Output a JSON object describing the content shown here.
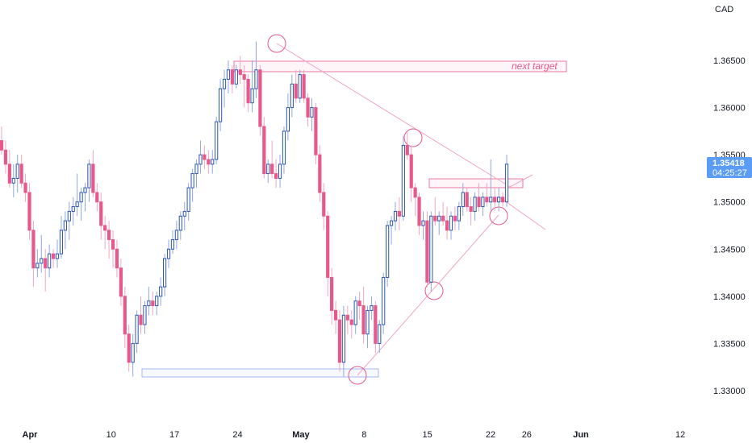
{
  "chart_data": {
    "type": "candlestick",
    "currency": "CAD",
    "y_ticks": [
      "1.36500",
      "1.36000",
      "1.35500",
      "1.35000",
      "1.34500",
      "1.34000",
      "1.33500",
      "1.33000"
    ],
    "ylim": [
      1.3285,
      1.3685
    ],
    "x_ticks": [
      {
        "label": "Apr",
        "day": 0,
        "bold": true
      },
      {
        "label": "10",
        "day": 9,
        "bold": false
      },
      {
        "label": "17",
        "day": 16,
        "bold": false
      },
      {
        "label": "24",
        "day": 23,
        "bold": false
      },
      {
        "label": "May",
        "day": 30,
        "bold": true
      },
      {
        "label": "8",
        "day": 37,
        "bold": false
      },
      {
        "label": "15",
        "day": 44,
        "bold": false
      },
      {
        "label": "22",
        "day": 51,
        "bold": false
      },
      {
        "label": "26",
        "day": 55,
        "bold": false
      },
      {
        "label": "Jun",
        "day": 61,
        "bold": true
      },
      {
        "label": "12",
        "day": 72,
        "bold": false
      }
    ],
    "last_price": "1.35418",
    "countdown": "04:25:27",
    "annotations": [
      {
        "text": "next target"
      }
    ],
    "colors": {
      "up": "#2a56b3",
      "down": "#e8588a",
      "accent": "#e8588a",
      "support": "#8fa7e8",
      "price_tag": "#5b9cf6"
    },
    "candles": [
      [
        1.3565,
        1.358,
        1.355,
        1.3555
      ],
      [
        1.3555,
        1.3565,
        1.353,
        1.354
      ],
      [
        1.354,
        1.3555,
        1.3515,
        1.352
      ],
      [
        1.352,
        1.354,
        1.3505,
        1.3525
      ],
      [
        1.3525,
        1.355,
        1.351,
        1.354
      ],
      [
        1.354,
        1.355,
        1.3515,
        1.352
      ],
      [
        1.352,
        1.353,
        1.35,
        1.351
      ],
      [
        1.351,
        1.352,
        1.346,
        1.347
      ],
      [
        1.347,
        1.348,
        1.341,
        1.343
      ],
      [
        1.343,
        1.345,
        1.342,
        1.3435
      ],
      [
        1.3435,
        1.3465,
        1.3425,
        1.344
      ],
      [
        1.344,
        1.345,
        1.3405,
        1.343
      ],
      [
        1.343,
        1.3455,
        1.342,
        1.3445
      ],
      [
        1.3445,
        1.345,
        1.343,
        1.344
      ],
      [
        1.344,
        1.346,
        1.343,
        1.3445
      ],
      [
        1.3445,
        1.3485,
        1.344,
        1.347
      ],
      [
        1.347,
        1.349,
        1.345,
        1.348
      ],
      [
        1.348,
        1.35,
        1.346,
        1.349
      ],
      [
        1.349,
        1.3505,
        1.3475,
        1.3495
      ],
      [
        1.3495,
        1.353,
        1.3485,
        1.35
      ],
      [
        1.35,
        1.3515,
        1.348,
        1.351
      ],
      [
        1.351,
        1.352,
        1.349,
        1.3515
      ],
      [
        1.3515,
        1.3545,
        1.35,
        1.354
      ],
      [
        1.354,
        1.3555,
        1.3505,
        1.351
      ],
      [
        1.351,
        1.352,
        1.349,
        1.35
      ],
      [
        1.35,
        1.351,
        1.346,
        1.3475
      ],
      [
        1.3475,
        1.3485,
        1.345,
        1.347
      ],
      [
        1.347,
        1.348,
        1.344,
        1.346
      ],
      [
        1.346,
        1.347,
        1.343,
        1.345
      ],
      [
        1.345,
        1.346,
        1.342,
        1.343
      ],
      [
        1.343,
        1.344,
        1.339,
        1.34
      ],
      [
        1.34,
        1.341,
        1.3345,
        1.336
      ],
      [
        1.336,
        1.337,
        1.332,
        1.333
      ],
      [
        1.333,
        1.336,
        1.3315,
        1.335
      ],
      [
        1.335,
        1.3385,
        1.334,
        1.338
      ],
      [
        1.338,
        1.34,
        1.336,
        1.337
      ],
      [
        1.337,
        1.3395,
        1.336,
        1.339
      ],
      [
        1.339,
        1.341,
        1.338,
        1.3395
      ],
      [
        1.3395,
        1.3405,
        1.338,
        1.339
      ],
      [
        1.339,
        1.3405,
        1.338,
        1.34
      ],
      [
        1.34,
        1.342,
        1.339,
        1.341
      ],
      [
        1.341,
        1.3445,
        1.34,
        1.344
      ],
      [
        1.344,
        1.346,
        1.343,
        1.345
      ],
      [
        1.345,
        1.347,
        1.3445,
        1.346
      ],
      [
        1.346,
        1.348,
        1.345,
        1.347
      ],
      [
        1.347,
        1.349,
        1.346,
        1.3485
      ],
      [
        1.3485,
        1.35,
        1.347,
        1.349
      ],
      [
        1.349,
        1.352,
        1.348,
        1.3515
      ],
      [
        1.3515,
        1.3535,
        1.35,
        1.353
      ],
      [
        1.353,
        1.3545,
        1.3515,
        1.354
      ],
      [
        1.354,
        1.3565,
        1.353,
        1.355
      ],
      [
        1.355,
        1.356,
        1.3535,
        1.3545
      ],
      [
        1.3545,
        1.3555,
        1.353,
        1.354
      ],
      [
        1.354,
        1.3555,
        1.353,
        1.3545
      ],
      [
        1.3545,
        1.359,
        1.354,
        1.3585
      ],
      [
        1.3585,
        1.363,
        1.3575,
        1.362
      ],
      [
        1.362,
        1.364,
        1.36,
        1.363
      ],
      [
        1.363,
        1.365,
        1.3615,
        1.364
      ],
      [
        1.364,
        1.3645,
        1.3615,
        1.3625
      ],
      [
        1.3625,
        1.3645,
        1.362,
        1.364
      ],
      [
        1.364,
        1.3655,
        1.3625,
        1.3635
      ],
      [
        1.3635,
        1.3645,
        1.36,
        1.363
      ],
      [
        1.363,
        1.3635,
        1.3595,
        1.3605
      ],
      [
        1.3605,
        1.365,
        1.3595,
        1.362
      ],
      [
        1.362,
        1.367,
        1.361,
        1.364
      ],
      [
        1.364,
        1.3645,
        1.357,
        1.358
      ],
      [
        1.358,
        1.359,
        1.3525,
        1.353
      ],
      [
        1.353,
        1.3545,
        1.352,
        1.354
      ],
      [
        1.354,
        1.3565,
        1.3525,
        1.353
      ],
      [
        1.353,
        1.3545,
        1.3515,
        1.3525
      ],
      [
        1.3525,
        1.355,
        1.3515,
        1.354
      ],
      [
        1.354,
        1.358,
        1.353,
        1.3575
      ],
      [
        1.3575,
        1.3615,
        1.3565,
        1.36
      ],
      [
        1.36,
        1.3635,
        1.359,
        1.3625
      ],
      [
        1.3625,
        1.364,
        1.3605,
        1.361
      ],
      [
        1.361,
        1.364,
        1.3605,
        1.3635
      ],
      [
        1.3635,
        1.364,
        1.3605,
        1.361
      ],
      [
        1.361,
        1.3615,
        1.358,
        1.359
      ],
      [
        1.359,
        1.361,
        1.3575,
        1.36
      ],
      [
        1.36,
        1.3605,
        1.354,
        1.355
      ],
      [
        1.355,
        1.356,
        1.35,
        1.351
      ],
      [
        1.351,
        1.352,
        1.347,
        1.3485
      ],
      [
        1.3485,
        1.349,
        1.34,
        1.342
      ],
      [
        1.342,
        1.343,
        1.337,
        1.3385
      ],
      [
        1.3385,
        1.3395,
        1.336,
        1.3375
      ],
      [
        1.3375,
        1.3385,
        1.332,
        1.333
      ],
      [
        1.333,
        1.339,
        1.3315,
        1.338
      ],
      [
        1.338,
        1.339,
        1.336,
        1.3375
      ],
      [
        1.3375,
        1.3385,
        1.3355,
        1.337
      ],
      [
        1.337,
        1.34,
        1.336,
        1.3395
      ],
      [
        1.3395,
        1.3405,
        1.3375,
        1.339
      ],
      [
        1.339,
        1.341,
        1.335,
        1.336
      ],
      [
        1.336,
        1.339,
        1.3345,
        1.3385
      ],
      [
        1.3385,
        1.34,
        1.3375,
        1.339
      ],
      [
        1.339,
        1.3395,
        1.334,
        1.335
      ],
      [
        1.335,
        1.3375,
        1.334,
        1.337
      ],
      [
        1.337,
        1.3425,
        1.336,
        1.342
      ],
      [
        1.342,
        1.348,
        1.341,
        1.3475
      ],
      [
        1.3475,
        1.3485,
        1.3455,
        1.348
      ],
      [
        1.348,
        1.35,
        1.347,
        1.349
      ],
      [
        1.349,
        1.3505,
        1.347,
        1.3485
      ],
      [
        1.3485,
        1.357,
        1.348,
        1.356
      ],
      [
        1.356,
        1.3575,
        1.3545,
        1.355
      ],
      [
        1.355,
        1.356,
        1.35,
        1.3515
      ],
      [
        1.3515,
        1.352,
        1.3485,
        1.3505
      ],
      [
        1.3505,
        1.351,
        1.3465,
        1.3475
      ],
      [
        1.3475,
        1.349,
        1.346,
        1.348
      ],
      [
        1.348,
        1.349,
        1.341,
        1.3415
      ],
      [
        1.3415,
        1.349,
        1.3405,
        1.3485
      ],
      [
        1.3485,
        1.3505,
        1.3475,
        1.348
      ],
      [
        1.348,
        1.349,
        1.3465,
        1.3485
      ],
      [
        1.3485,
        1.35,
        1.3475,
        1.348
      ],
      [
        1.348,
        1.3495,
        1.346,
        1.347
      ],
      [
        1.347,
        1.349,
        1.346,
        1.3485
      ],
      [
        1.3485,
        1.3495,
        1.347,
        1.348
      ],
      [
        1.348,
        1.35,
        1.347,
        1.3495
      ],
      [
        1.3495,
        1.352,
        1.3485,
        1.351
      ],
      [
        1.351,
        1.3515,
        1.349,
        1.3495
      ],
      [
        1.3495,
        1.3505,
        1.3475,
        1.349
      ],
      [
        1.349,
        1.351,
        1.348,
        1.3505
      ],
      [
        1.3505,
        1.352,
        1.349,
        1.3495
      ],
      [
        1.3495,
        1.351,
        1.3485,
        1.3505
      ],
      [
        1.3505,
        1.352,
        1.3495,
        1.35
      ],
      [
        1.35,
        1.3545,
        1.349,
        1.3505
      ],
      [
        1.3505,
        1.3515,
        1.349,
        1.35
      ],
      [
        1.35,
        1.3515,
        1.349,
        1.3505
      ],
      [
        1.3505,
        1.351,
        1.3495,
        1.35
      ],
      [
        1.35,
        1.355,
        1.3495,
        1.354
      ]
    ]
  }
}
